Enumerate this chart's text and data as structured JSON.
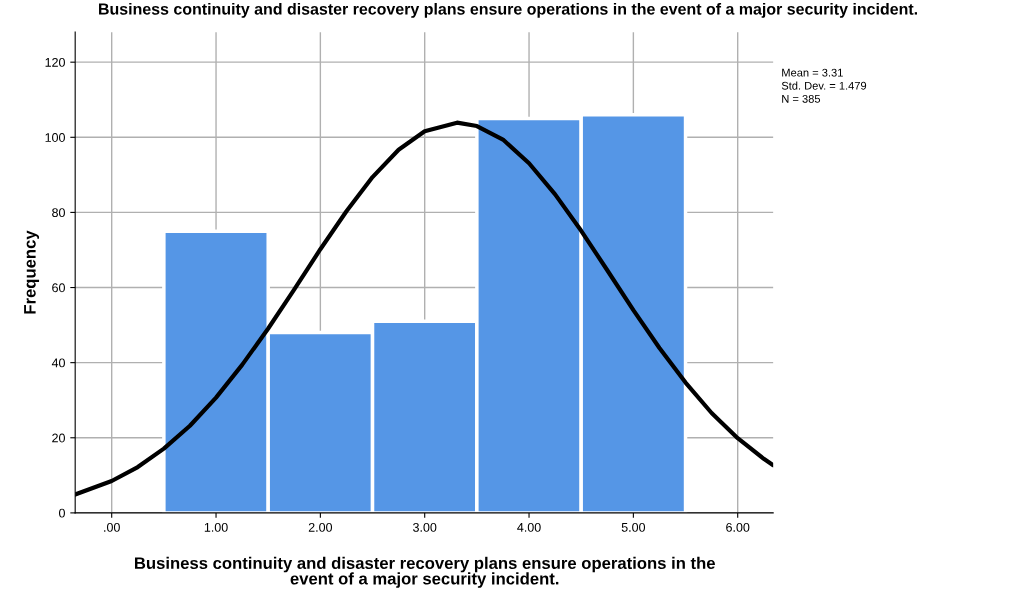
{
  "chart_data": {
    "type": "histogram",
    "title": "Business continuity and disaster recovery plans ensure operations in the event of a major security incident.",
    "xlabel": "Business continuity and disaster recovery plans ensure operations in the event of a major security incident.",
    "ylabel": "Frequency",
    "annotations": [
      "Mean = 3.31",
      "Std. Dev. = 1.479",
      "N = 385"
    ],
    "series": [
      {
        "bins": [
          0.5,
          1.5,
          2.5,
          3.5,
          4.5,
          5.5
        ],
        "values": [
          75,
          48,
          51,
          105,
          106
        ],
        "color": "#5596e6"
      },
      {
        "type": "line",
        "color": "#000000",
        "x": [
          -0.35,
          0,
          0.25,
          0.5,
          0.75,
          1.0,
          1.25,
          1.5,
          1.75,
          2.0,
          2.25,
          2.5,
          2.75,
          3.0,
          3.31,
          3.5,
          3.75,
          4.0,
          4.25,
          4.5,
          4.75,
          5.0,
          5.25,
          5.5,
          5.75,
          6.0,
          6.25,
          6.34
        ],
        "values": [
          4.9,
          8.5,
          12.2,
          17.1,
          23.2,
          30.7,
          39.4,
          49.1,
          59.5,
          70.2,
          80.3,
          89.4,
          96.7,
          101.6,
          103.9,
          103.0,
          99.4,
          93.1,
          84.8,
          75.1,
          64.6,
          54.0,
          43.9,
          34.7,
          26.6,
          19.9,
          14.4,
          12.7
        ]
      }
    ],
    "xlim": [
      -0.35,
      6.34
    ],
    "ylim": [
      0,
      128
    ],
    "xticks": [
      {
        "value": 0,
        "label": ".00"
      },
      {
        "value": 1,
        "label": "1.00"
      },
      {
        "value": 2,
        "label": "2.00"
      },
      {
        "value": 3,
        "label": "3.00"
      },
      {
        "value": 4,
        "label": "4.00"
      },
      {
        "value": 5,
        "label": "5.00"
      },
      {
        "value": 6,
        "label": "6.00"
      }
    ],
    "yticks": [
      0,
      20,
      40,
      60,
      80,
      100,
      120
    ],
    "grid": true
  }
}
